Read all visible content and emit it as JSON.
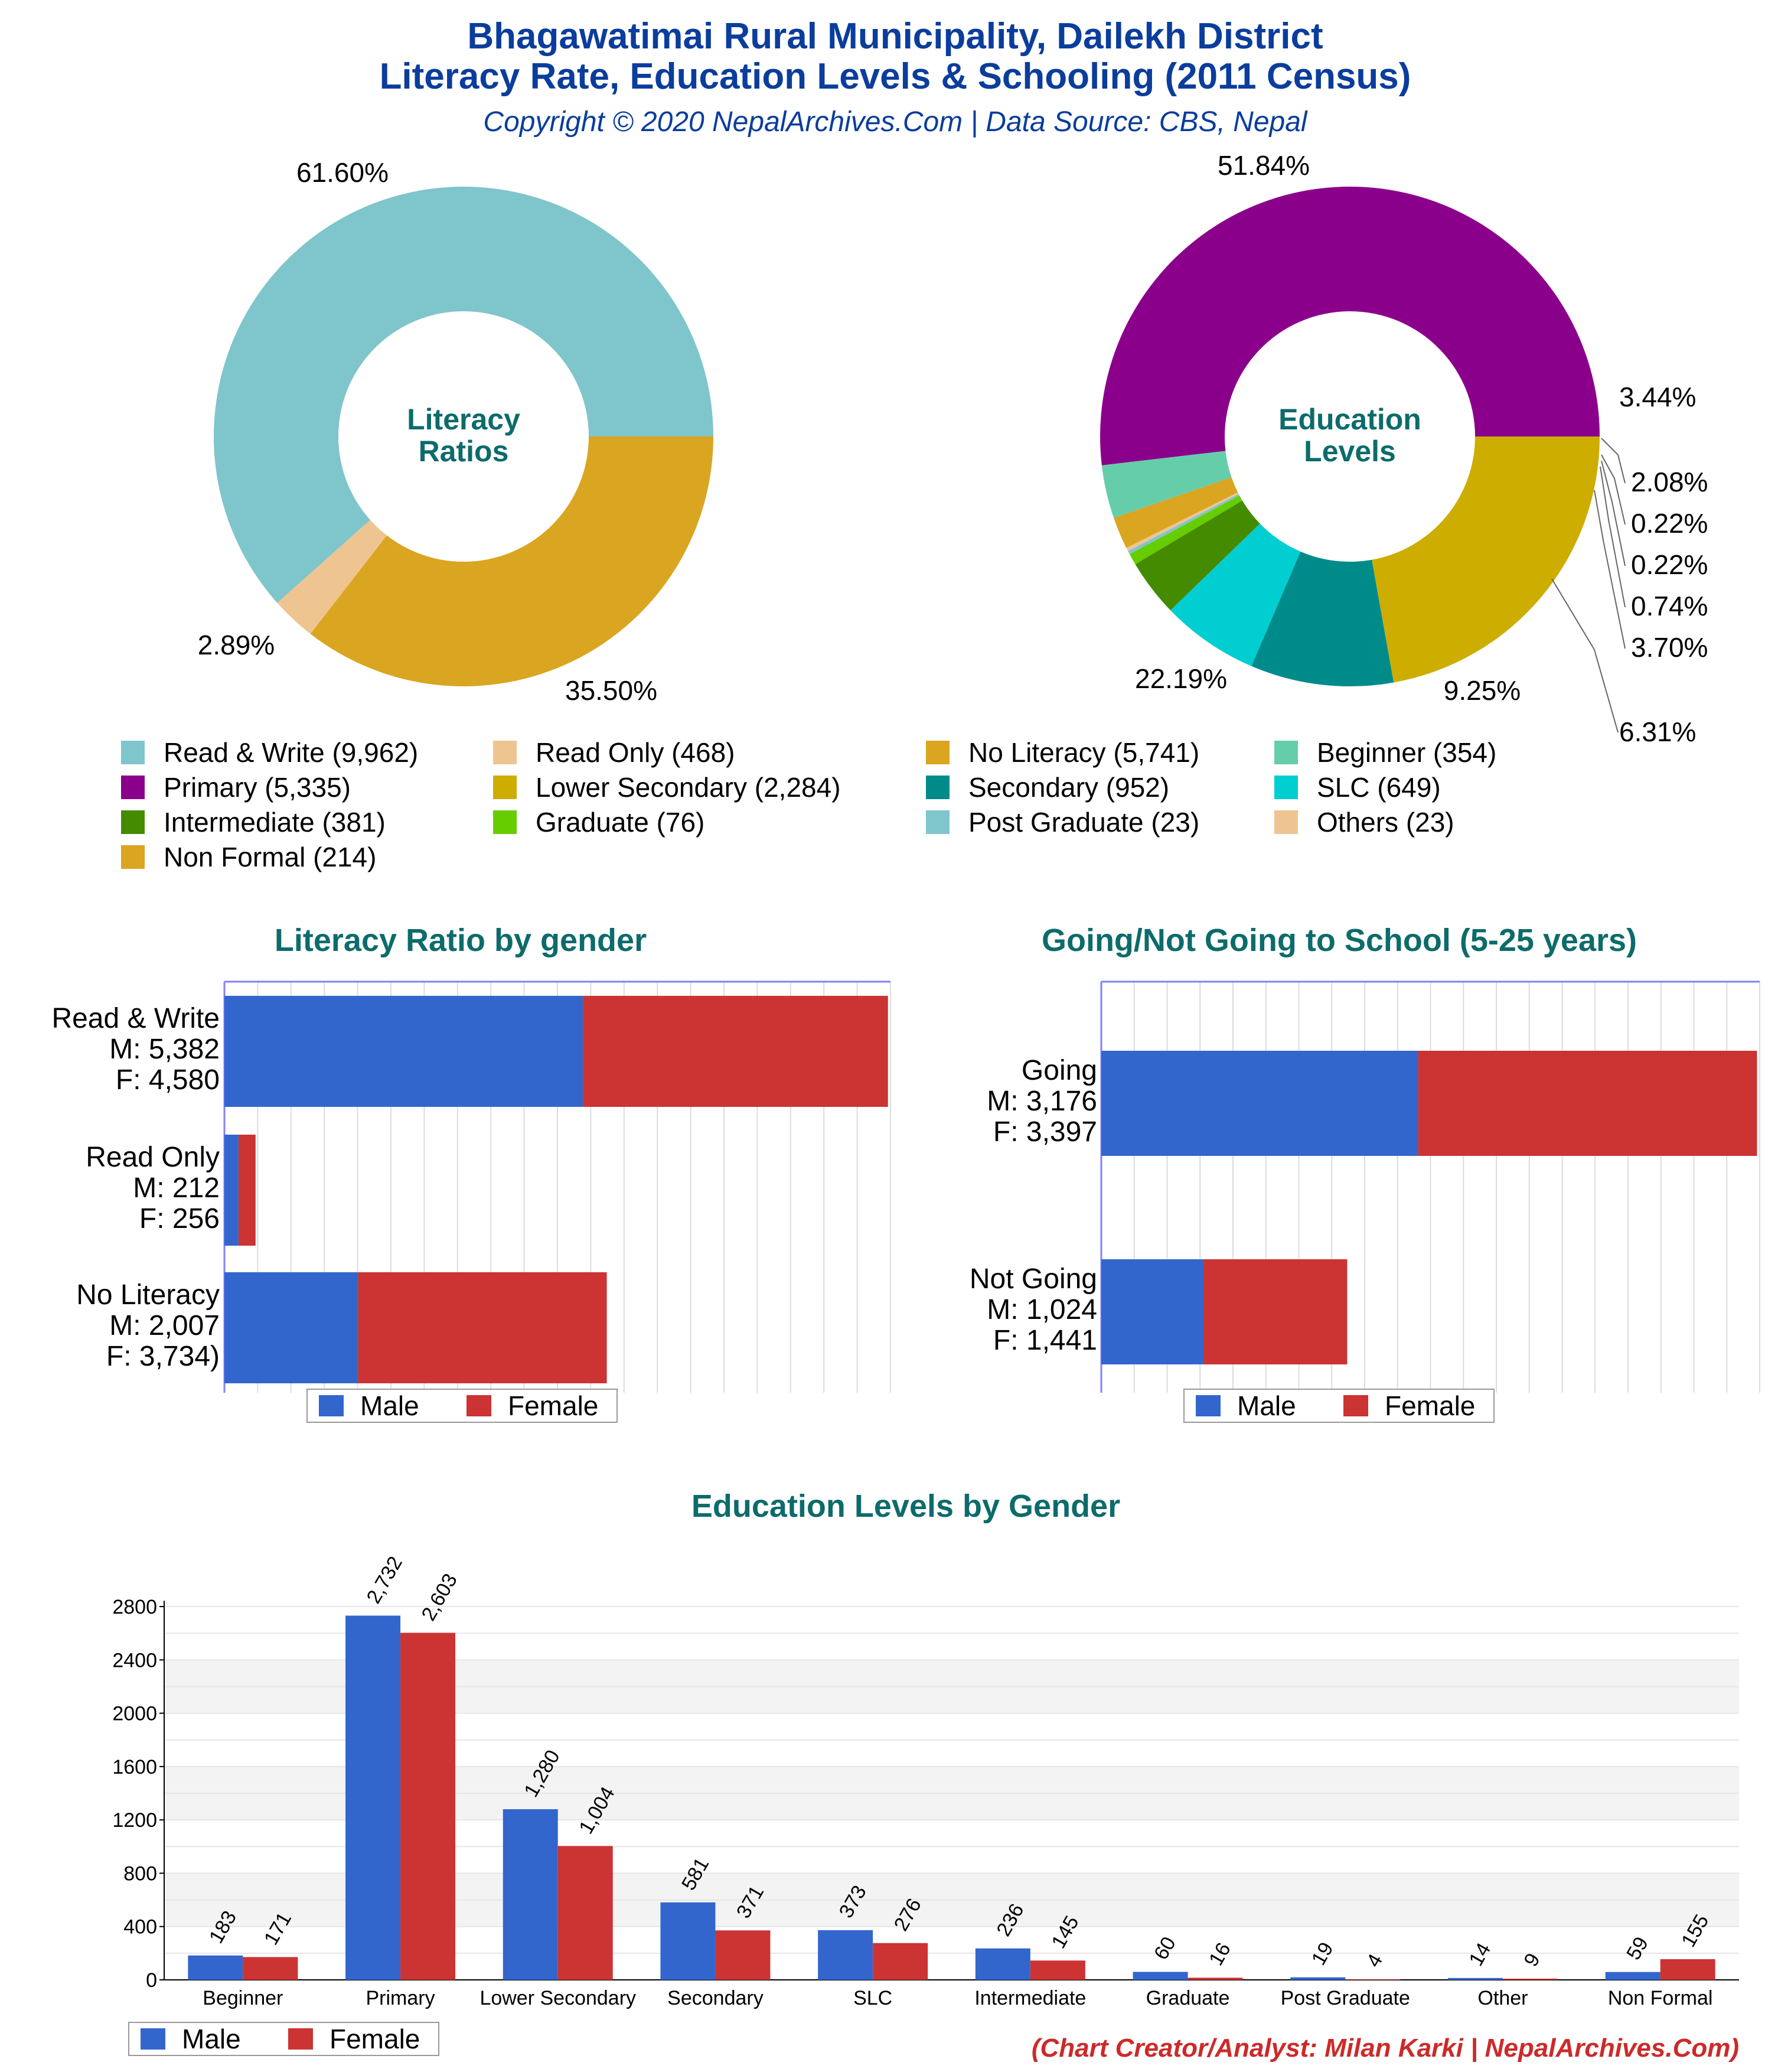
{
  "header": {
    "title_line1": "Bhagawatimai Rural Municipality, Dailekh District",
    "title_line2": "Literacy Rate, Education Levels & Schooling (2011 Census)",
    "subtitle": "Copyright © 2020 NepalArchives.Com | Data Source: CBS, Nepal"
  },
  "credit": "(Chart Creator/Analyst: Milan Karki | NepalArchives.Com)",
  "colors": {
    "male": "#3366cc",
    "female": "#cc3333"
  },
  "chart_data": [
    {
      "type": "pie",
      "center_label": [
        "Literacy",
        "Ratios"
      ],
      "slices": [
        {
          "label": "Read & Write",
          "value": 9962,
          "percent": "61.60%",
          "color": "#7fc5cc"
        },
        {
          "label": "Read Only",
          "value": 468,
          "percent": "2.89%",
          "color": "#eec591"
        },
        {
          "label": "No Literacy",
          "value": 5741,
          "percent": "35.50%",
          "color": "#daa520"
        }
      ]
    },
    {
      "type": "pie",
      "center_label": [
        "Education",
        "Levels"
      ],
      "slices": [
        {
          "label": "Primary",
          "value": 5335,
          "percent": "51.84%",
          "color": "#8b008b"
        },
        {
          "label": "Beginner",
          "value": 354,
          "percent": "3.44%",
          "color": "#66cdaa"
        },
        {
          "label": "Non Formal",
          "value": 214,
          "percent": "2.08%",
          "color": "#daa520"
        },
        {
          "label": "Others",
          "value": 23,
          "percent": "0.22%",
          "color": "#eec591"
        },
        {
          "label": "Post Graduate",
          "value": 23,
          "percent": "0.22%",
          "color": "#7fc5cc"
        },
        {
          "label": "Graduate",
          "value": 76,
          "percent": "0.74%",
          "color": "#66cd00"
        },
        {
          "label": "Intermediate",
          "value": 381,
          "percent": "3.70%",
          "color": "#458b00"
        },
        {
          "label": "SLC",
          "value": 649,
          "percent": "6.31%",
          "color": "#00ced1"
        },
        {
          "label": "Secondary",
          "value": 952,
          "percent": "9.25%",
          "color": "#008b8b"
        },
        {
          "label": "Lower Secondary",
          "value": 2284,
          "percent": "22.19%",
          "color": "#cdad00"
        }
      ]
    },
    {
      "type": "bar",
      "orientation": "horizontal",
      "stacked": true,
      "title": "Literacy Ratio by gender",
      "categories": [
        [
          "Read & Write",
          "M: 5,382",
          "F: 4,580"
        ],
        [
          "Read Only",
          "M: 212",
          "F: 256"
        ],
        [
          "No Literacy",
          "M: 2,007",
          "F: 3,734)"
        ]
      ],
      "series": [
        {
          "name": "Male",
          "values": [
            5382,
            212,
            2007
          ]
        },
        {
          "name": "Female",
          "values": [
            4580,
            256,
            3734
          ]
        }
      ],
      "xlim": [
        0,
        10000
      ],
      "legend": "bottom"
    },
    {
      "type": "bar",
      "orientation": "horizontal",
      "stacked": true,
      "title": "Going/Not Going to School (5-25 years)",
      "categories": [
        [
          "Going",
          "M: 3,176",
          "F: 3,397"
        ],
        [
          "Not Going",
          "M: 1,024",
          "F: 1,441"
        ]
      ],
      "series": [
        {
          "name": "Male",
          "values": [
            3176,
            1024
          ]
        },
        {
          "name": "Female",
          "values": [
            3397,
            1441
          ]
        }
      ],
      "xlim": [
        0,
        6600
      ],
      "legend": "bottom"
    },
    {
      "type": "bar",
      "title": "Education Levels by Gender",
      "categories": [
        "Beginner",
        "Primary",
        "Lower Secondary",
        "Secondary",
        "SLC",
        "Intermediate",
        "Graduate",
        "Post Graduate",
        "Other",
        "Non Formal"
      ],
      "series": [
        {
          "name": "Male",
          "values": [
            183,
            2732,
            1280,
            581,
            373,
            236,
            60,
            19,
            14,
            59
          ],
          "labels": [
            "183",
            "2,732",
            "1,280",
            "581",
            "373",
            "236",
            "60",
            "19",
            "14",
            "59"
          ]
        },
        {
          "name": "Female",
          "values": [
            171,
            2603,
            1004,
            371,
            276,
            145,
            16,
            4,
            9,
            155
          ],
          "labels": [
            "171",
            "2,603",
            "1,004",
            "371",
            "276",
            "145",
            "16",
            "4",
            "9",
            "155"
          ]
        }
      ],
      "ylim": [
        0,
        2800
      ],
      "yticks": [
        0,
        400,
        800,
        1200,
        1600,
        2000,
        2400,
        2800
      ],
      "grid": true,
      "legend": "bottom-left"
    }
  ],
  "legend_main": [
    "Read & Write (9,962)",
    "Read Only (468)",
    "No Literacy (5,741)",
    "Beginner (354)",
    "Primary (5,335)",
    "Lower Secondary (2,284)",
    "Secondary (952)",
    "SLC (649)",
    "Intermediate (381)",
    "Graduate (76)",
    "Post Graduate (23)",
    "Others (23)",
    "Non Formal (214)"
  ],
  "legend_main_colors": [
    "#7fc5cc",
    "#eec591",
    "#daa520",
    "#66cdaa",
    "#8b008b",
    "#cdad00",
    "#008b8b",
    "#00ced1",
    "#458b00",
    "#66cd00",
    "#7fc5cc",
    "#eec591",
    "#daa520"
  ]
}
